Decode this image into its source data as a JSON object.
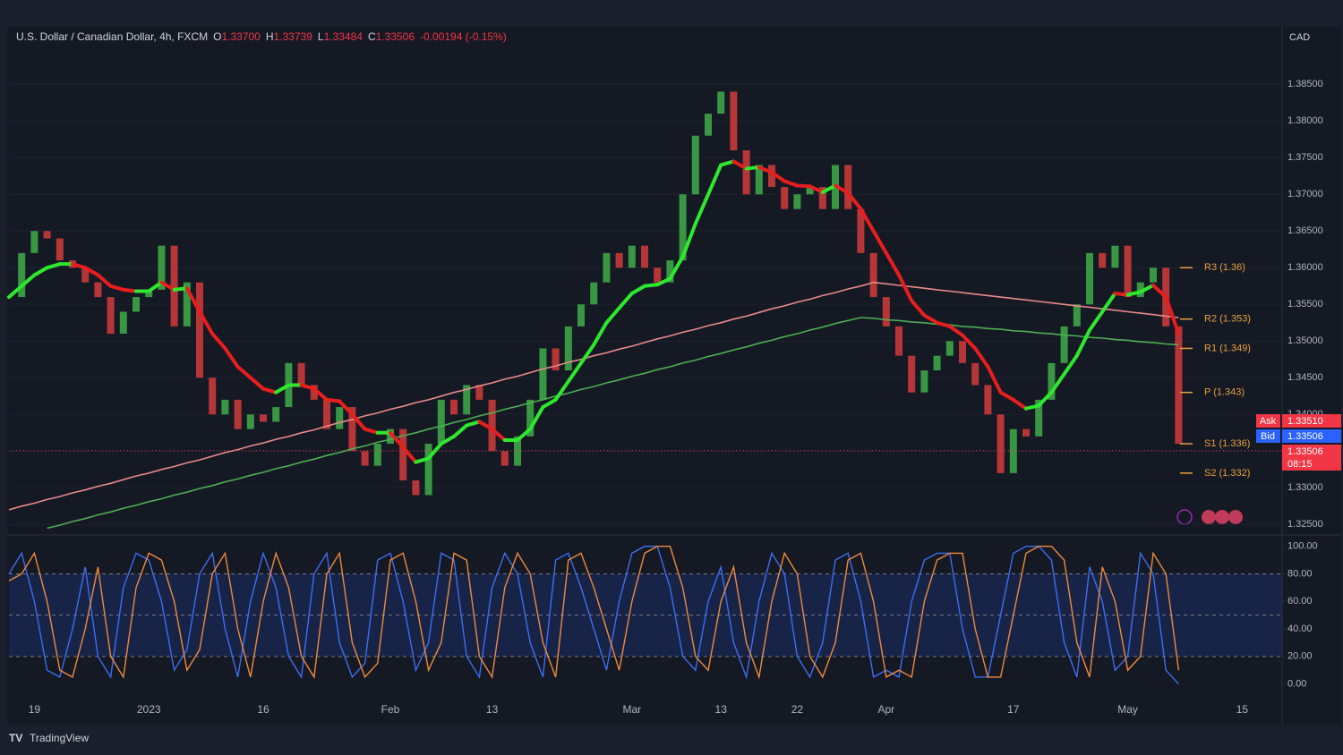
{
  "header": {
    "symbol": "U.S. Dollar / Canadian Dollar, 4h, FXCM",
    "open_label": "O",
    "open": "1.33700",
    "high_label": "H",
    "high": "1.33739",
    "low_label": "L",
    "low": "1.33484",
    "close_label": "C",
    "close": "1.33506",
    "change": "-0.00194 (-0.15%)"
  },
  "currency": "CAD",
  "price_tags": {
    "ask_label": "Ask",
    "ask": "1.33510",
    "bid_label": "Bid",
    "bid": "1.33506",
    "countdown": "08:15"
  },
  "branding": "TradingView",
  "chart_data": [
    {
      "type": "candlestick",
      "categories": [
        null,
        null,
        "19",
        null,
        null,
        null,
        null,
        null,
        null,
        null,
        null,
        "2023",
        null,
        null,
        null,
        null,
        null,
        null,
        null,
        null,
        "16",
        null,
        null,
        null,
        null,
        null,
        null,
        null,
        null,
        null,
        "Feb",
        null,
        null,
        null,
        null,
        null,
        null,
        null,
        "13",
        null,
        null,
        null,
        null,
        null,
        null,
        null,
        null,
        null,
        null,
        "Mar",
        null,
        null,
        null,
        null,
        null,
        null,
        "13",
        null,
        null,
        null,
        null,
        null,
        "22",
        null,
        null,
        null,
        null,
        null,
        null,
        "Apr",
        null,
        null,
        null,
        null,
        null,
        null,
        null,
        null,
        null,
        "17",
        null,
        null,
        null,
        null,
        null,
        null,
        null,
        null,
        "May",
        null,
        null,
        null,
        null,
        null,
        null,
        null,
        null,
        "15",
        null,
        null
      ],
      "values": [
        1.356,
        1.362,
        1.365,
        1.364,
        1.361,
        1.36,
        1.358,
        1.356,
        1.351,
        1.354,
        1.356,
        1.357,
        1.363,
        1.352,
        1.358,
        1.345,
        1.34,
        1.342,
        1.338,
        1.34,
        1.339,
        1.341,
        1.347,
        1.344,
        1.342,
        1.338,
        1.341,
        1.335,
        1.333,
        1.336,
        1.338,
        1.331,
        1.329,
        1.336,
        1.342,
        1.34,
        1.344,
        1.342,
        1.335,
        1.333,
        1.337,
        1.342,
        1.349,
        1.346,
        1.352,
        1.355,
        1.358,
        1.362,
        1.36,
        1.363,
        1.36,
        1.358,
        1.361,
        1.37,
        1.378,
        1.381,
        1.384,
        1.376,
        1.37,
        1.374,
        1.371,
        1.368,
        1.37,
        1.371,
        1.368,
        1.374,
        1.368,
        1.362,
        1.356,
        1.352,
        1.348,
        1.343,
        1.346,
        1.348,
        1.35,
        1.347,
        1.344,
        1.34,
        1.332,
        1.338,
        1.337,
        1.342,
        1.347,
        1.352,
        1.355,
        1.362,
        1.36,
        1.363,
        1.356,
        1.358,
        1.36,
        1.352,
        1.336,
        null,
        null,
        null,
        null,
        null,
        null,
        null
      ],
      "up_color": "#3fae49",
      "down_color": "#d23c3c",
      "series": [
        {
          "color": "#e88a8a",
          "values": [
            1.327,
            1.3275,
            1.3279,
            1.3284,
            1.3288,
            1.3293,
            1.3297,
            1.3302,
            1.3306,
            1.3311,
            1.3316,
            1.332,
            1.3325,
            1.3329,
            1.3334,
            1.3338,
            1.3343,
            1.3348,
            1.3352,
            1.3357,
            1.3361,
            1.3366,
            1.337,
            1.3375,
            1.3379,
            1.3384,
            1.3389,
            1.3393,
            1.3398,
            1.3402,
            1.3407,
            1.3411,
            1.3416,
            1.342,
            1.3425,
            1.343,
            1.3434,
            1.3439,
            1.3443,
            1.3448,
            1.3452,
            1.3457,
            1.3462,
            1.3466,
            1.3471,
            1.3475,
            1.348,
            1.3484,
            1.3489,
            1.3493,
            1.3498,
            1.3503,
            1.3507,
            1.3512,
            1.3516,
            1.3521,
            1.3525,
            1.353,
            1.3534,
            1.3539,
            1.3544,
            1.3548,
            1.3553,
            1.3557,
            1.3562,
            1.3566,
            1.3571,
            1.3575,
            1.358,
            1.3578,
            1.3576,
            1.3574,
            1.3572,
            1.357,
            1.3568,
            1.3566,
            1.3564,
            1.3562,
            1.356,
            1.3558,
            1.3556,
            1.3554,
            1.3552,
            1.355,
            1.3548,
            1.3546,
            1.3544,
            1.3542,
            1.354,
            1.3538,
            1.3536,
            1.3534,
            1.3532,
            null,
            null,
            null,
            null,
            null,
            null,
            null
          ]
        },
        {
          "color": "#4caf50",
          "values": [
            null,
            null,
            null,
            1.3245,
            1.3249,
            1.3254,
            1.3258,
            1.3263,
            1.3267,
            1.3272,
            1.3276,
            1.3281,
            1.3285,
            1.329,
            1.3294,
            1.3299,
            1.3303,
            1.3308,
            1.3312,
            1.3317,
            1.3321,
            1.3326,
            1.333,
            1.3335,
            1.3339,
            1.3344,
            1.3348,
            1.3353,
            1.3357,
            1.3362,
            1.3366,
            1.3371,
            1.3375,
            1.338,
            1.3384,
            1.3389,
            1.3393,
            1.3398,
            1.3402,
            1.3407,
            1.3411,
            1.3416,
            1.342,
            1.3425,
            1.3429,
            1.3434,
            1.3438,
            1.3443,
            1.3447,
            1.3452,
            1.3456,
            1.3461,
            1.3465,
            1.347,
            1.3474,
            1.3479,
            1.3483,
            1.3488,
            1.3492,
            1.3497,
            1.3501,
            1.3506,
            1.351,
            1.3515,
            1.3519,
            1.3524,
            1.3528,
            1.3532,
            1.3531,
            1.3529,
            1.3528,
            1.3526,
            1.3525,
            1.3523,
            1.3522,
            1.352,
            1.3519,
            1.3517,
            1.3516,
            1.3514,
            1.3513,
            1.3511,
            1.351,
            1.3508,
            1.3507,
            1.3505,
            1.3504,
            1.3502,
            1.3501,
            1.3499,
            1.3498,
            1.3496,
            1.3495,
            null,
            null,
            null,
            null,
            null,
            null,
            null
          ]
        },
        {
          "colors": [
            "#2ee82e",
            "#e81e1e"
          ],
          "values": [
            1.356,
            1.3575,
            1.359,
            1.36,
            1.3605,
            1.3605,
            1.36,
            1.359,
            1.3575,
            1.357,
            1.3568,
            1.3568,
            1.358,
            1.357,
            1.3572,
            1.354,
            1.351,
            1.349,
            1.3465,
            1.345,
            1.3435,
            1.343,
            1.344,
            1.344,
            1.3435,
            1.342,
            1.3418,
            1.34,
            1.338,
            1.3375,
            1.3375,
            1.3355,
            1.3335,
            1.334,
            1.336,
            1.337,
            1.3385,
            1.339,
            1.338,
            1.3365,
            1.3365,
            1.338,
            1.341,
            1.342,
            1.3445,
            1.347,
            1.3495,
            1.3525,
            1.3545,
            1.3565,
            1.3575,
            1.3577,
            1.3585,
            1.3615,
            1.366,
            1.37,
            1.374,
            1.3745,
            1.3735,
            1.3737,
            1.373,
            1.3718,
            1.3712,
            1.3711,
            1.3703,
            1.3712,
            1.3702,
            1.368,
            1.365,
            1.362,
            1.359,
            1.3555,
            1.3535,
            1.3525,
            1.352,
            1.3508,
            1.349,
            1.3465,
            1.343,
            1.342,
            1.3408,
            1.3412,
            1.343,
            1.3455,
            1.348,
            1.3515,
            1.354,
            1.3565,
            1.3563,
            1.3567,
            1.3576,
            1.356,
            1.351,
            null,
            null,
            null,
            null,
            null,
            null,
            null
          ]
        }
      ],
      "ylim": [
        1.3243,
        1.3904
      ],
      "yticks": [
        {
          "value": 1.325,
          "label": "1.32500"
        },
        {
          "value": 1.33,
          "label": "1.33000"
        },
        {
          "value": 1.335,
          "label": "1.33500"
        },
        {
          "value": 1.34,
          "label": "1.34000"
        },
        {
          "value": 1.345,
          "label": "1.34500"
        },
        {
          "value": 1.35,
          "label": "1.35000"
        },
        {
          "value": 1.355,
          "label": "1.35500"
        },
        {
          "value": 1.36,
          "label": "1.36000"
        },
        {
          "value": 1.365,
          "label": "1.36500"
        },
        {
          "value": 1.37,
          "label": "1.37000"
        },
        {
          "value": 1.375,
          "label": "1.37500"
        },
        {
          "value": 1.38,
          "label": "1.38000"
        },
        {
          "value": 1.385,
          "label": "1.38500"
        }
      ],
      "price_line": 1.33506,
      "levels": [
        {
          "label": "R3 (1.36)",
          "value": 1.36
        },
        {
          "label": "R2 (1.353)",
          "value": 1.353
        },
        {
          "label": "R1 (1.349)",
          "value": 1.349
        },
        {
          "label": "P (1.343)",
          "value": 1.343
        },
        {
          "label": "S1 (1.336)",
          "value": 1.336
        },
        {
          "label": "S2 (1.332)",
          "value": 1.332
        }
      ],
      "level_color": "#e8a040"
    },
    {
      "type": "line",
      "series": [
        {
          "color": "#3d6df2",
          "values": [
            80,
            95,
            60,
            10,
            5,
            40,
            85,
            20,
            5,
            70,
            95,
            90,
            60,
            10,
            25,
            80,
            95,
            40,
            5,
            60,
            95,
            70,
            20,
            5,
            80,
            95,
            30,
            5,
            15,
            90,
            95,
            60,
            10,
            30,
            95,
            90,
            20,
            5,
            70,
            95,
            80,
            30,
            5,
            90,
            95,
            70,
            40,
            10,
            60,
            95,
            100,
            100,
            70,
            20,
            10,
            60,
            85,
            30,
            5,
            60,
            95,
            80,
            20,
            5,
            30,
            90,
            95,
            60,
            5,
            10,
            5,
            60,
            90,
            95,
            95,
            40,
            5,
            5,
            50,
            95,
            100,
            100,
            90,
            30,
            5,
            85,
            60,
            10,
            20,
            95,
            80,
            10,
            0,
            null,
            null,
            null,
            null,
            null,
            null,
            null
          ]
        },
        {
          "color": "#ef8a3c",
          "values": [
            75,
            80,
            95,
            60,
            10,
            5,
            40,
            85,
            20,
            5,
            70,
            95,
            90,
            60,
            10,
            25,
            80,
            95,
            40,
            5,
            60,
            95,
            70,
            20,
            5,
            80,
            95,
            30,
            5,
            15,
            90,
            95,
            60,
            10,
            30,
            95,
            90,
            20,
            5,
            70,
            95,
            80,
            30,
            5,
            90,
            95,
            70,
            40,
            10,
            60,
            95,
            100,
            100,
            70,
            20,
            10,
            60,
            85,
            30,
            5,
            60,
            95,
            80,
            20,
            5,
            30,
            90,
            95,
            60,
            5,
            10,
            5,
            60,
            90,
            95,
            95,
            40,
            5,
            5,
            50,
            95,
            100,
            100,
            90,
            30,
            5,
            85,
            60,
            10,
            20,
            95,
            80,
            10,
            null,
            null,
            null,
            null,
            null,
            null,
            null
          ]
        }
      ],
      "ylim": [
        -10,
        105
      ],
      "yticks": [
        {
          "value": 0,
          "label": "0.00"
        },
        {
          "value": 20,
          "label": "20.00"
        },
        {
          "value": 40,
          "label": "40.00"
        },
        {
          "value": 60,
          "label": "60.00"
        },
        {
          "value": 80,
          "label": "80.00"
        },
        {
          "value": 100,
          "label": "100.00"
        }
      ],
      "band": [
        20,
        80
      ],
      "dashed_levels": [
        20,
        50,
        80
      ]
    }
  ]
}
